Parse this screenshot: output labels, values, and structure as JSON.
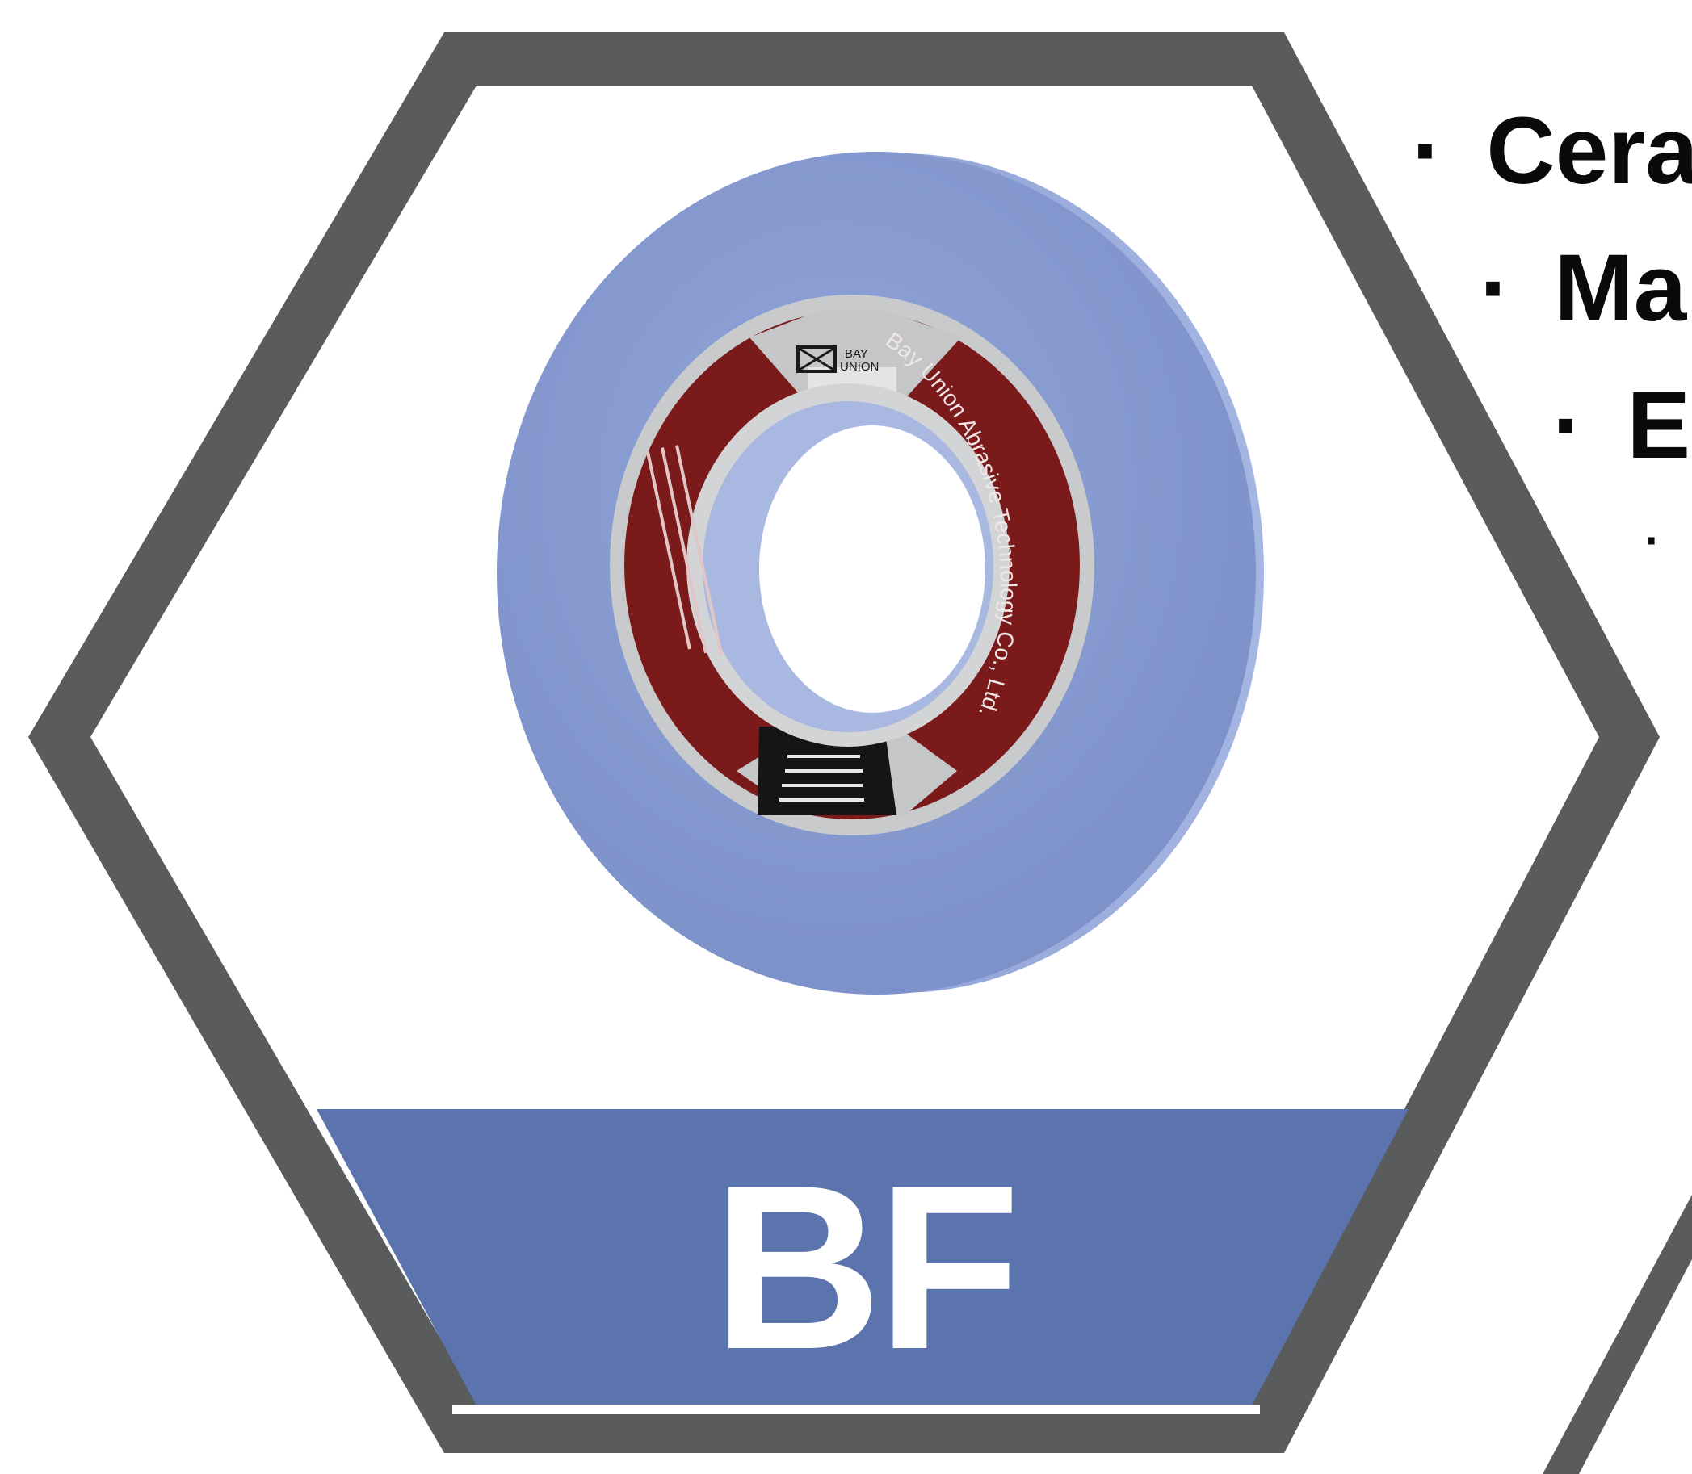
{
  "badge": {
    "code": "BF",
    "banner_color": "#5b74ad",
    "frame_color": "#5a5b5d"
  },
  "wheel": {
    "body_color": "#8a9ed2",
    "label_color": "#7a1a1a",
    "brand": "BAY\nUNION",
    "brand_line1": "BAY",
    "brand_line2": "UNION",
    "company": "Bay Union Abrasive Technology Co., Ltd."
  },
  "bullets": [
    {
      "mark": "·",
      "text": "Cera"
    },
    {
      "mark": "·",
      "text": "Ma"
    },
    {
      "mark": "·",
      "text": "E"
    },
    {
      "mark": "·",
      "text": ""
    }
  ]
}
